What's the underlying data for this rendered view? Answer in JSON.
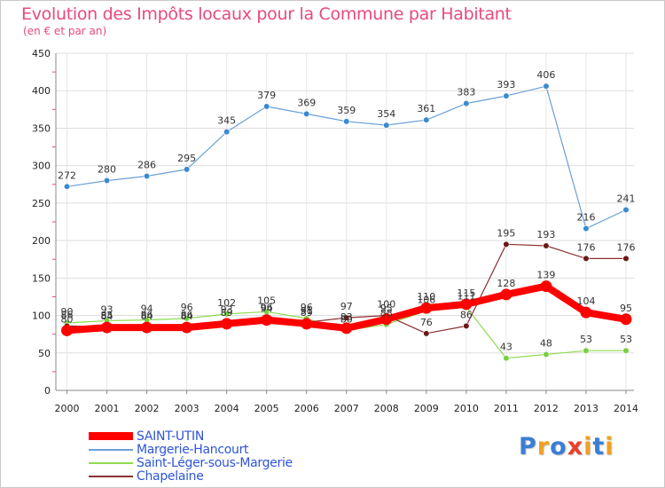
{
  "header": {
    "title": "Evolution des Impôts locaux pour la Commune par Habitant",
    "subtitle": "(en € et par an)"
  },
  "logo": {
    "text": "Proxiti",
    "colors": [
      "#3b7fd4",
      "#f0a020",
      "#3b7fd4",
      "#e8402a",
      "#f0a020",
      "#3b7fd4",
      "#f0a020"
    ]
  },
  "chart_data": {
    "type": "line",
    "title": "Evolution des Impôts locaux pour la Commune par Habitant",
    "subtitle": "(en € et par an)",
    "xlabel": "",
    "ylabel": "",
    "ylim": [
      0,
      450
    ],
    "yticks": [
      0,
      50,
      100,
      150,
      200,
      250,
      300,
      350,
      400,
      450
    ],
    "grid": true,
    "legend_position": "bottom-left",
    "categories": [
      "2000",
      "2001",
      "2002",
      "2003",
      "2004",
      "2005",
      "2006",
      "2007",
      "2008",
      "2009",
      "2010",
      "2011",
      "2012",
      "2013",
      "2014"
    ],
    "series": [
      {
        "name": "Margerie-Hancourt",
        "color": "#6aa0d8",
        "marker": "#3a8ad0",
        "width": 1.2,
        "values": [
          272,
          280,
          286,
          295,
          345,
          379,
          369,
          359,
          354,
          361,
          383,
          393,
          406,
          216,
          241
        ],
        "labels": [
          "272",
          "280",
          "286",
          "295",
          "345",
          "379",
          "369",
          "359",
          "354",
          "361",
          "383",
          "393",
          "406",
          "216",
          "241"
        ]
      },
      {
        "name": "Saint-Léger-sous-Margerie",
        "color": "#8edc52",
        "marker": "#78d040",
        "width": 1.2,
        "values": [
          90,
          93,
          94,
          96,
          102,
          105,
          96,
          80,
          88,
          106,
          111,
          43,
          48,
          53,
          53
        ],
        "labels": [
          "90",
          "93",
          "94",
          "96",
          "102",
          "105",
          "96",
          "80",
          "88",
          "106",
          "111",
          "43",
          "48",
          "53",
          "53"
        ]
      },
      {
        "name": "Chapelaine",
        "color": "#8b3030",
        "marker": "#6a1818",
        "width": 1.2,
        "values": [
          86,
          85,
          86,
          86,
          93,
          96,
          91,
          97,
          100,
          76,
          86,
          195,
          193,
          176,
          176
        ],
        "labels": [
          "86",
          "85",
          "86",
          "86",
          "93",
          "96",
          "91",
          "97",
          "100",
          "76",
          "86",
          "195",
          "193",
          "176",
          "176"
        ]
      },
      {
        "name": "SAINT-UTIN",
        "color": "#ff0000",
        "marker": "#ff0000",
        "width": 8,
        "values": [
          80,
          84,
          84,
          84,
          89,
          94,
          89,
          83,
          95,
          110,
          115,
          128,
          139,
          104,
          95
        ],
        "labels": [
          "80",
          "84",
          "84",
          "84",
          "89",
          "94",
          "89",
          "83",
          "95",
          "110",
          "115",
          "128",
          "139",
          "104",
          "95"
        ]
      }
    ],
    "legend_order": [
      "SAINT-UTIN",
      "Margerie-Hancourt",
      "Saint-Léger-sous-Margerie",
      "Chapelaine"
    ]
  }
}
